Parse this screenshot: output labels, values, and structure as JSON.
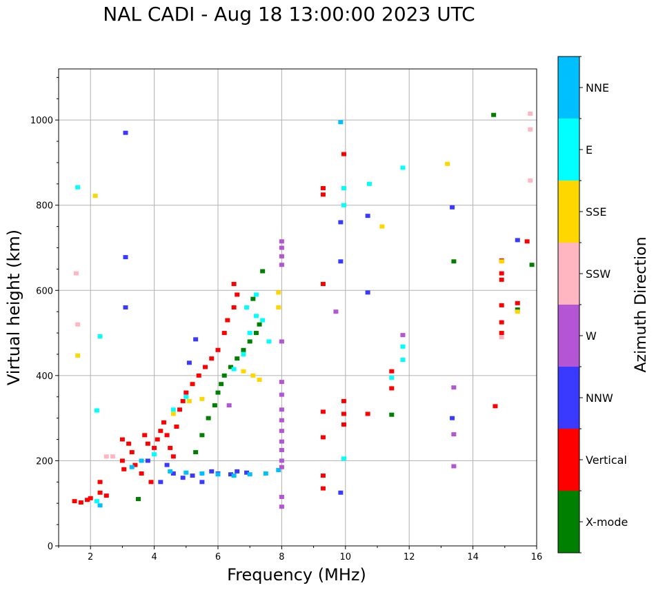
{
  "chart_data": {
    "type": "scatter",
    "title": "NAL CADI - Aug 18 13:00:00 2023 UTC",
    "xlabel": "Frequency (MHz)",
    "ylabel": "Virtual height (km)",
    "xlim": [
      1,
      16
    ],
    "ylim": [
      0,
      1120
    ],
    "xticks": [
      2,
      4,
      6,
      8,
      10,
      12,
      14,
      16
    ],
    "yticks": [
      0,
      200,
      400,
      600,
      800,
      1000
    ],
    "grid": true,
    "colorbar": {
      "label": "Azimuth Direction",
      "categories": [
        {
          "name": "X-mode",
          "color": "#008000"
        },
        {
          "name": "Vertical",
          "color": "#ff0000"
        },
        {
          "name": "NNW",
          "color": "#3a3aff"
        },
        {
          "name": "W",
          "color": "#b455d5"
        },
        {
          "name": "SSW",
          "color": "#ffb6c1"
        },
        {
          "name": "SSE",
          "color": "#ffd700"
        },
        {
          "name": "E",
          "color": "#00ffff"
        },
        {
          "name": "NNE",
          "color": "#00bfff"
        }
      ]
    },
    "series": [
      {
        "name": "Vertical",
        "points": [
          [
            1.5,
            105
          ],
          [
            1.7,
            102
          ],
          [
            1.9,
            108
          ],
          [
            2.0,
            112
          ],
          [
            2.3,
            150
          ],
          [
            2.3,
            125
          ],
          [
            2.5,
            118
          ],
          [
            3.0,
            250
          ],
          [
            3.0,
            200
          ],
          [
            3.05,
            180
          ],
          [
            3.2,
            240
          ],
          [
            3.3,
            220
          ],
          [
            3.4,
            190
          ],
          [
            3.6,
            170
          ],
          [
            3.7,
            260
          ],
          [
            3.8,
            240
          ],
          [
            3.9,
            150
          ],
          [
            4.0,
            230
          ],
          [
            4.1,
            250
          ],
          [
            4.2,
            270
          ],
          [
            4.3,
            290
          ],
          [
            4.4,
            260
          ],
          [
            4.5,
            230
          ],
          [
            4.6,
            210
          ],
          [
            4.7,
            280
          ],
          [
            4.8,
            320
          ],
          [
            4.9,
            340
          ],
          [
            5.0,
            360
          ],
          [
            5.2,
            380
          ],
          [
            5.4,
            400
          ],
          [
            5.6,
            420
          ],
          [
            5.8,
            440
          ],
          [
            6.0,
            460
          ],
          [
            6.2,
            500
          ],
          [
            6.3,
            530
          ],
          [
            6.5,
            560
          ],
          [
            6.6,
            590
          ],
          [
            6.5,
            615
          ],
          [
            9.3,
            840
          ],
          [
            9.3,
            825
          ],
          [
            9.3,
            615
          ],
          [
            9.3,
            315
          ],
          [
            9.3,
            255
          ],
          [
            9.3,
            165
          ],
          [
            9.3,
            135
          ],
          [
            9.95,
            920
          ],
          [
            9.95,
            340
          ],
          [
            9.95,
            310
          ],
          [
            9.95,
            285
          ],
          [
            10.7,
            310
          ],
          [
            11.45,
            410
          ],
          [
            11.45,
            370
          ],
          [
            14.7,
            328
          ],
          [
            14.9,
            670
          ],
          [
            14.9,
            640
          ],
          [
            14.9,
            625
          ],
          [
            14.9,
            565
          ],
          [
            14.9,
            525
          ],
          [
            14.9,
            500
          ],
          [
            15.4,
            570
          ],
          [
            15.7,
            715
          ]
        ]
      },
      {
        "name": "NNW",
        "points": [
          [
            3.1,
            970
          ],
          [
            3.1,
            560
          ],
          [
            3.1,
            678
          ],
          [
            4.2,
            150
          ],
          [
            4.6,
            170
          ],
          [
            4.9,
            160
          ],
          [
            5.2,
            165
          ],
          [
            5.5,
            150
          ],
          [
            5.8,
            175
          ],
          [
            6.0,
            170
          ],
          [
            6.4,
            168
          ],
          [
            6.6,
            175
          ],
          [
            6.9,
            172
          ],
          [
            3.8,
            200
          ],
          [
            4.4,
            190
          ],
          [
            5.3,
            485
          ],
          [
            5.1,
            430
          ],
          [
            9.85,
            760
          ],
          [
            9.85,
            668
          ],
          [
            9.85,
            125
          ],
          [
            10.7,
            775
          ],
          [
            10.7,
            595
          ],
          [
            13.35,
            795
          ],
          [
            13.35,
            300
          ],
          [
            15.4,
            718
          ]
        ]
      },
      {
        "name": "X-mode",
        "points": [
          [
            3.5,
            110
          ],
          [
            5.3,
            220
          ],
          [
            5.5,
            260
          ],
          [
            5.7,
            300
          ],
          [
            5.9,
            330
          ],
          [
            6.0,
            360
          ],
          [
            6.1,
            380
          ],
          [
            6.2,
            400
          ],
          [
            6.4,
            420
          ],
          [
            6.6,
            440
          ],
          [
            6.8,
            460
          ],
          [
            7.0,
            480
          ],
          [
            7.2,
            500
          ],
          [
            7.3,
            520
          ],
          [
            7.1,
            580
          ],
          [
            7.4,
            645
          ],
          [
            11.45,
            308
          ],
          [
            13.4,
            668
          ],
          [
            14.65,
            1012
          ],
          [
            15.4,
            555
          ],
          [
            15.85,
            660
          ]
        ]
      },
      {
        "name": "E",
        "points": [
          [
            2.2,
            105
          ],
          [
            4.0,
            215
          ],
          [
            4.6,
            320
          ],
          [
            5.0,
            350
          ],
          [
            6.5,
            415
          ],
          [
            6.8,
            450
          ],
          [
            7.0,
            500
          ],
          [
            7.2,
            540
          ],
          [
            7.4,
            530
          ],
          [
            7.6,
            480
          ],
          [
            6.9,
            560
          ],
          [
            7.2,
            590
          ],
          [
            9.95,
            840
          ],
          [
            9.95,
            800
          ],
          [
            9.95,
            205
          ],
          [
            10.75,
            850
          ],
          [
            11.8,
            888
          ],
          [
            11.8,
            468
          ],
          [
            11.8,
            437
          ],
          [
            11.45,
            395
          ],
          [
            2.3,
            492
          ],
          [
            1.6,
            842
          ],
          [
            2.2,
            318
          ]
        ]
      },
      {
        "name": "NNE",
        "points": [
          [
            2.3,
            95
          ],
          [
            3.3,
            185
          ],
          [
            3.6,
            200
          ],
          [
            4.5,
            175
          ],
          [
            5.0,
            172
          ],
          [
            5.5,
            170
          ],
          [
            6.0,
            168
          ],
          [
            6.5,
            165
          ],
          [
            7.0,
            168
          ],
          [
            7.5,
            170
          ],
          [
            7.9,
            178
          ],
          [
            9.85,
            995
          ]
        ]
      },
      {
        "name": "SSE",
        "points": [
          [
            4.6,
            310
          ],
          [
            5.1,
            340
          ],
          [
            5.5,
            345
          ],
          [
            6.8,
            410
          ],
          [
            7.1,
            400
          ],
          [
            7.3,
            390
          ],
          [
            7.9,
            595
          ],
          [
            7.9,
            560
          ],
          [
            11.15,
            750
          ],
          [
            13.2,
            897
          ],
          [
            14.9,
            668
          ],
          [
            15.4,
            550
          ],
          [
            2.15,
            822
          ],
          [
            1.6,
            447
          ]
        ]
      },
      {
        "name": "W",
        "points": [
          [
            8.0,
            715
          ],
          [
            8.0,
            700
          ],
          [
            8.0,
            680
          ],
          [
            8.0,
            660
          ],
          [
            8.0,
            480
          ],
          [
            8.0,
            385
          ],
          [
            8.0,
            355
          ],
          [
            8.0,
            320
          ],
          [
            8.0,
            295
          ],
          [
            8.0,
            270
          ],
          [
            8.0,
            245
          ],
          [
            8.0,
            225
          ],
          [
            8.0,
            200
          ],
          [
            8.0,
            185
          ],
          [
            8.0,
            115
          ],
          [
            8.0,
            92
          ],
          [
            6.35,
            330
          ],
          [
            9.7,
            550
          ],
          [
            11.8,
            495
          ],
          [
            13.4,
            372
          ],
          [
            13.4,
            262
          ],
          [
            13.4,
            187
          ]
        ]
      },
      {
        "name": "SSW",
        "points": [
          [
            2.5,
            210
          ],
          [
            2.7,
            210
          ],
          [
            15.8,
            1015
          ],
          [
            15.8,
            978
          ],
          [
            15.8,
            858
          ],
          [
            14.9,
            490
          ],
          [
            1.6,
            520
          ],
          [
            1.55,
            640
          ]
        ]
      }
    ]
  }
}
